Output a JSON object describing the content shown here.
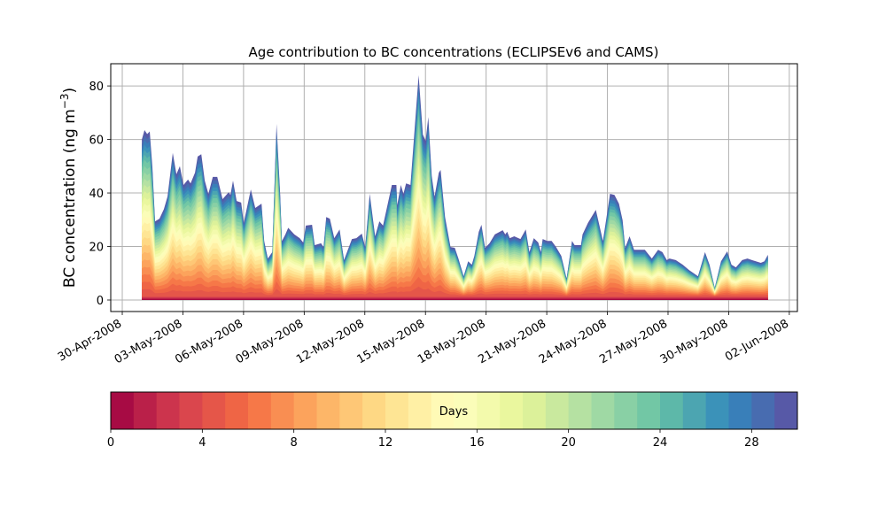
{
  "chart_data": {
    "type": "area",
    "title": "Age contribution to BC concentrations (ECLIPSEv6 and CAMS)",
    "ylabel": "BC concentration (ng m",
    "ylabel_sup": "−3",
    "ylabel_close": ")",
    "xlabel": "",
    "ylim": [
      -4.3,
      88.3
    ],
    "xlim_days_since_30Apr2008": [
      -0.57,
      33.4
    ],
    "grid": true,
    "yticks": [
      0,
      20,
      40,
      60,
      80
    ],
    "yticklabels": [
      "0",
      "20",
      "40",
      "60",
      "80"
    ],
    "xticks_days": [
      0,
      3,
      6,
      9,
      12,
      15,
      18,
      21,
      24,
      27,
      30,
      33
    ],
    "xticklabels": [
      "30-Apr-2008",
      "03-May-2008",
      "06-May-2008",
      "09-May-2008",
      "12-May-2008",
      "15-May-2008",
      "18-May-2008",
      "21-May-2008",
      "24-May-2008",
      "27-May-2008",
      "30-May-2008",
      "02-Jun-2008"
    ],
    "series_total": {
      "x_days": [
        0.97,
        1.1,
        1.23,
        1.36,
        1.49,
        1.62,
        1.84,
        2.06,
        2.24,
        2.5,
        2.68,
        2.85,
        3.03,
        3.25,
        3.38,
        3.6,
        3.73,
        3.91,
        4.08,
        4.26,
        4.48,
        4.7,
        4.96,
        5.27,
        5.35,
        5.48,
        5.66,
        5.88,
        6.01,
        6.36,
        6.58,
        6.89,
        7.02,
        7.2,
        7.42,
        7.63,
        7.81,
        7.9,
        8.07,
        8.21,
        8.51,
        8.78,
        8.95,
        9.08,
        9.39,
        9.52,
        9.83,
        9.96,
        10.09,
        10.27,
        10.49,
        10.75,
        10.97,
        11.36,
        11.58,
        11.85,
        12.02,
        12.24,
        12.51,
        12.72,
        12.9,
        13.34,
        13.56,
        13.6,
        13.78,
        13.91,
        14.04,
        14.26,
        14.66,
        14.87,
        15.01,
        15.14,
        15.31,
        15.45,
        15.66,
        15.75,
        15.97,
        16.24,
        16.45,
        16.63,
        16.89,
        17.11,
        17.29,
        17.42,
        17.64,
        17.77,
        17.95,
        18.17,
        18.43,
        18.82,
        18.95,
        19.04,
        19.17,
        19.39,
        19.7,
        19.96,
        20.14,
        20.36,
        20.58,
        20.71,
        20.8,
        21.02,
        21.24,
        21.46,
        21.72,
        21.98,
        22.25,
        22.38,
        22.69,
        22.77,
        23.04,
        23.43,
        23.78,
        24.0,
        24.13,
        24.35,
        24.57,
        24.75,
        24.88,
        25.1,
        25.32,
        25.54,
        25.85,
        26.2,
        26.51,
        26.72,
        26.94,
        27.07,
        27.38,
        27.73,
        28.04,
        28.48,
        28.83,
        29.05,
        29.31,
        29.62,
        29.93,
        30.14,
        30.36,
        30.67,
        30.93,
        31.15,
        31.59,
        31.77,
        31.94
      ],
      "values": [
        60,
        63.5,
        62,
        63,
        49.6,
        29.4,
        30.4,
        34,
        38.7,
        55,
        47,
        50,
        43,
        45,
        43.6,
        47.6,
        53.6,
        54.5,
        44.6,
        39.7,
        46,
        46,
        37.7,
        40.3,
        39.3,
        44.6,
        37,
        36.4,
        28.8,
        41.3,
        34.4,
        36,
        22,
        15.5,
        17.9,
        65.8,
        39.7,
        22,
        24.5,
        27,
        24.5,
        23.1,
        21.5,
        27.8,
        28.1,
        20.5,
        21.2,
        19.8,
        31,
        30.4,
        23.1,
        26.4,
        14.9,
        22.8,
        23.1,
        24.8,
        19.8,
        39.7,
        23.8,
        29.4,
        27.8,
        43,
        43,
        35.4,
        43,
        39.7,
        43.6,
        43,
        84,
        61.8,
        59.5,
        68.4,
        46.3,
        38.7,
        47.6,
        48.6,
        31,
        19.8,
        19.5,
        15.5,
        8.9,
        14.5,
        13.2,
        16.5,
        25.5,
        28.1,
        19.5,
        21.2,
        24.5,
        26.1,
        24.5,
        25.5,
        23.1,
        23.8,
        22.8,
        26.4,
        17.9,
        23.1,
        21.5,
        17.9,
        22.8,
        22.1,
        22.1,
        19.8,
        16.5,
        8,
        22.1,
        20.5,
        20.5,
        24.5,
        28.8,
        33.7,
        22.1,
        33,
        39.7,
        39.3,
        36,
        29.8,
        19.5,
        23.8,
        18.8,
        18.8,
        18.8,
        15.5,
        18.8,
        17.9,
        14.9,
        15.5,
        14.9,
        13.2,
        11.2,
        8.9,
        17.9,
        13.2,
        4.6,
        14.5,
        18.2,
        13.2,
        12.2,
        14.9,
        15.5,
        14.9,
        13.9,
        14.5,
        16.9
      ]
    },
    "age_bins_days": 30,
    "colorbar": {
      "label": "Days",
      "range": [
        0,
        30
      ],
      "ticks": [
        0,
        4,
        8,
        12,
        16,
        20,
        24,
        28
      ],
      "ticklabels": [
        "0",
        "4",
        "8",
        "12",
        "16",
        "20",
        "24",
        "28"
      ],
      "colormap": [
        "#9e0142",
        "#d53e4f",
        "#f46d43",
        "#fdae61",
        "#fee08b",
        "#ffffbf",
        "#e6f598",
        "#abdda4",
        "#66c2a5",
        "#3288bd",
        "#5e4fa2"
      ]
    }
  }
}
